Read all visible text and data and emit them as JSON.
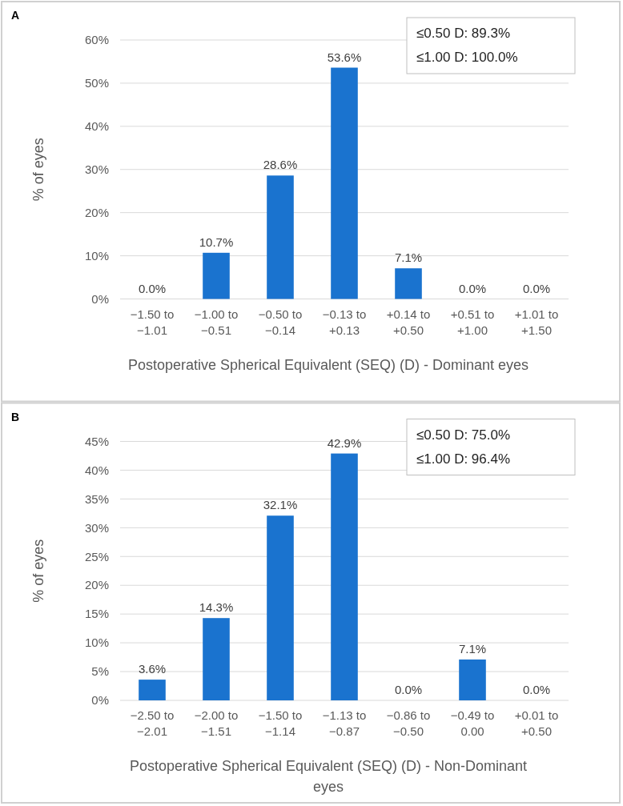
{
  "chart_data": [
    {
      "type": "bar",
      "title": "A",
      "xlabel": "Postoperative Spherical Equivalent (SEQ) (D) - Dominant eyes",
      "ylabel": "% of eyes",
      "categories": [
        "−1.50 to −1.01",
        "−1.00 to −0.51",
        "−0.50 to −0.14",
        "−0.13 to +0.13",
        "+0.14 to +0.50",
        "+0.51 to +1.00",
        "+1.01 to +1.50"
      ],
      "values": [
        0,
        10.7,
        28.6,
        53.6,
        7.1,
        0,
        0
      ],
      "value_labels": [
        "0.0%",
        "10.7%",
        "28.6%",
        "53.6%",
        "7.1%",
        "0.0%",
        "0.0%"
      ],
      "color": "#1a73cf",
      "ylim": [
        0,
        60
      ],
      "yticks": [
        {
          "value": 0,
          "label": "0%"
        },
        {
          "value": 10,
          "label": "10%"
        },
        {
          "value": 20,
          "label": "20%"
        },
        {
          "value": 30,
          "label": "30%"
        },
        {
          "value": 40,
          "label": "40%"
        },
        {
          "value": 50,
          "label": "50%"
        },
        {
          "value": 60,
          "label": "60%"
        }
      ],
      "grid": "y",
      "annotations": [
        "≤0.50 D: 89.3%",
        "≤1.00 D: 100.0%"
      ]
    },
    {
      "type": "bar",
      "title": "B",
      "xlabel": "Postoperative Spherical Equivalent (SEQ) (D) - Non-Dominant eyes",
      "ylabel": "% of eyes",
      "categories": [
        "−2.50 to −2.01",
        "−2.00 to −1.51",
        "−1.50 to −1.14",
        "−1.13 to −0.87",
        "−0.86 to −0.50",
        "−0.49 to 0.00",
        "+0.01 to +0.50"
      ],
      "values": [
        3.6,
        14.3,
        32.1,
        42.9,
        0,
        7.1,
        0
      ],
      "value_labels": [
        "3.6%",
        "14.3%",
        "32.1%",
        "42.9%",
        "0.0%",
        "7.1%",
        "0.0%"
      ],
      "color": "#1a73cf",
      "ylim": [
        0,
        45
      ],
      "yticks": [
        {
          "value": 0,
          "label": "0%"
        },
        {
          "value": 5,
          "label": "5%"
        },
        {
          "value": 10,
          "label": "10%"
        },
        {
          "value": 15,
          "label": "15%"
        },
        {
          "value": 20,
          "label": "20%"
        },
        {
          "value": 25,
          "label": "25%"
        },
        {
          "value": 30,
          "label": "30%"
        },
        {
          "value": 35,
          "label": "35%"
        },
        {
          "value": 40,
          "label": "40%"
        },
        {
          "value": 45,
          "label": "45%"
        }
      ],
      "grid": "y",
      "annotations": [
        "≤0.50 D: 75.0%",
        "≤1.00 D: 96.4%"
      ]
    }
  ]
}
